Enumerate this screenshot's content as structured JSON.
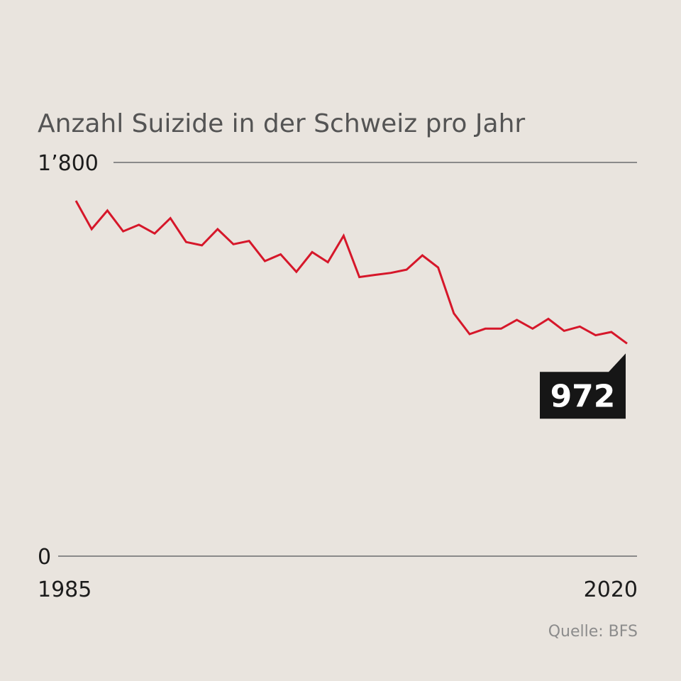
{
  "chart_data": {
    "type": "line",
    "title": "Anzahl Suizide in der Schweiz pro Jahr",
    "source": "Quelle: BFS",
    "x_tick_labels": [
      "1985",
      "2020"
    ],
    "y_tick_labels": [
      "1’800",
      "0"
    ],
    "ylim": [
      0,
      1800
    ],
    "xlim": [
      1985,
      2020
    ],
    "grid": "y-lines at ticks",
    "last_value_label": "972",
    "colors": {
      "line": "#d6172a",
      "label_bg": "#161616",
      "background": "#e9e4de"
    },
    "series": [
      {
        "x": [
          1985,
          1986,
          1987,
          1988,
          1989,
          1990,
          1991,
          1992,
          1993,
          1994,
          1995,
          1996,
          1997,
          1998,
          1999,
          2000,
          2001,
          2002,
          2003,
          2004,
          2005,
          2006,
          2007,
          2008,
          2009,
          2010,
          2011,
          2012,
          2013,
          2014,
          2015,
          2016,
          2017,
          2018,
          2019,
          2020
        ],
        "values": [
          1625,
          1495,
          1580,
          1485,
          1515,
          1475,
          1545,
          1436,
          1421,
          1495,
          1426,
          1441,
          1349,
          1380,
          1300,
          1390,
          1344,
          1465,
          1276,
          1286,
          1295,
          1310,
          1375,
          1320,
          1110,
          1015,
          1040,
          1040,
          1080,
          1040,
          1085,
          1030,
          1050,
          1010,
          1025,
          972
        ]
      }
    ]
  }
}
